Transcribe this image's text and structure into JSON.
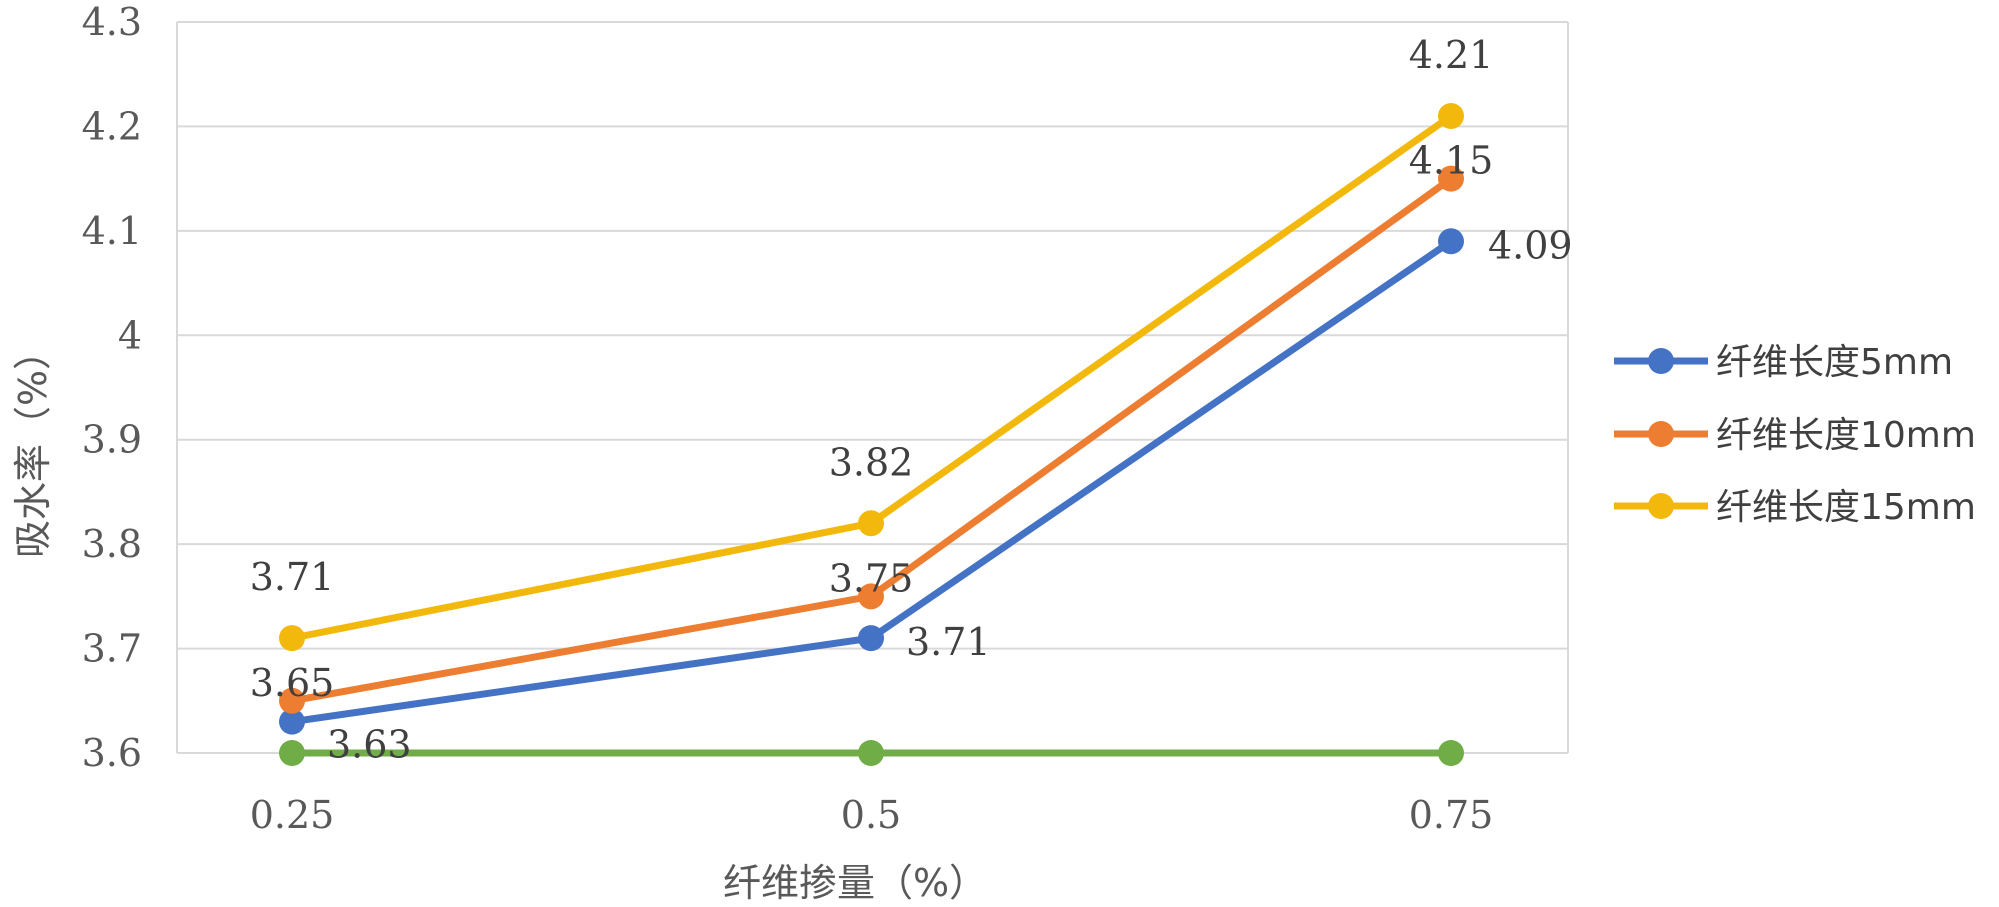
{
  "chart_data": {
    "type": "line",
    "x": [
      0.25,
      0.5,
      0.75
    ],
    "x_tick_labels": [
      "0.25",
      "0.5",
      "0.75"
    ],
    "xlabel": "纤维掺量（%）",
    "ylabel": "吸水率（%）",
    "ylim": [
      3.6,
      4.3
    ],
    "y_ticks": [
      3.6,
      3.7,
      3.8,
      3.9,
      4.0,
      4.1,
      4.2,
      4.3
    ],
    "y_tick_labels": [
      "3.6",
      "3.7",
      "3.8",
      "3.9",
      "4",
      "4.1",
      "4.2",
      "4.3"
    ],
    "grid": true,
    "legend_position": "right",
    "series": [
      {
        "name": "纤维长度5mm",
        "values": [
          3.63,
          3.71,
          4.09
        ],
        "labels": [
          "3.63",
          "3.71",
          "4.09"
        ],
        "color": "#4472C4"
      },
      {
        "name": "纤维长度10mm",
        "values": [
          3.65,
          3.75,
          4.15
        ],
        "labels": [
          "3.65",
          "3.75",
          "4.15"
        ],
        "color": "#ED7D31"
      },
      {
        "name": "纤维长度15mm",
        "values": [
          3.71,
          3.82,
          4.21
        ],
        "labels": [
          "3.71",
          "3.82",
          "4.21"
        ],
        "color": "#F2B90C"
      },
      {
        "values": [
          3.6,
          3.6,
          3.6
        ],
        "color": "#70AD47",
        "in_legend": false
      }
    ]
  }
}
